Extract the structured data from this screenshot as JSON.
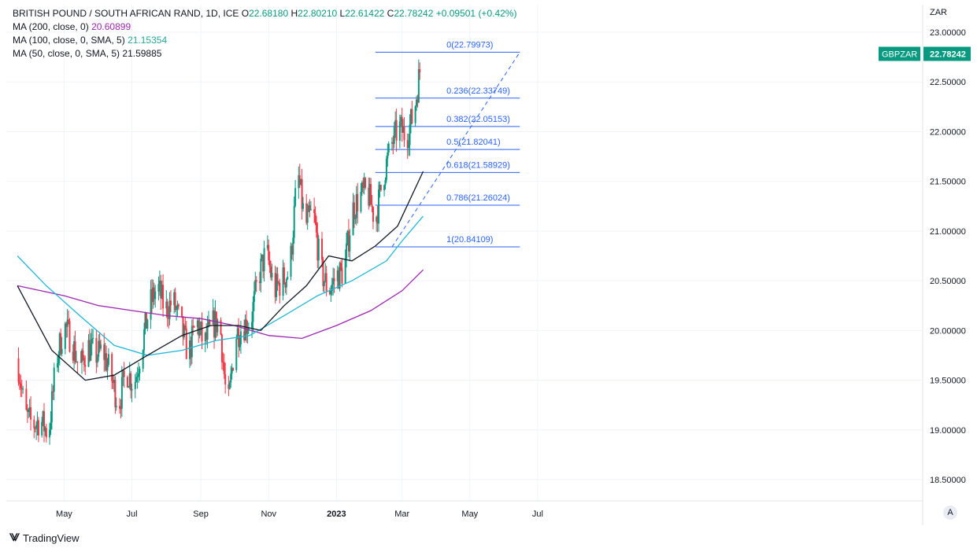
{
  "legend": {
    "symbol": "BRITISH POUND / SOUTH AFRICAN RAND, 1D, ICE",
    "o_label": "O",
    "o": "22.68180",
    "h_label": "H",
    "h": "22.80210",
    "l_label": "L",
    "l": "22.61422",
    "c_label": "C",
    "c": "22.78242",
    "change": "+0.09501 (+0.42%)",
    "ma200_label": "MA (200, close, 0)",
    "ma200_value": "20.60899",
    "ma100_label": "MA (100, close, 0, SMA, 5)",
    "ma100_value": "21.15354",
    "ma50_label": "MA (50, close, 0, SMA, 5)",
    "ma50_value": "21.59885"
  },
  "footer": {
    "brand": "TradingView"
  },
  "controls": {
    "auto_label": "A"
  },
  "colors": {
    "up": "#089981",
    "down": "#f23645",
    "ma200": "#9c27b0",
    "ma100": "#22b7d6",
    "ma50": "#131722",
    "fib": "#2962ff",
    "grid": "#f0f3fa",
    "price_badge": "#089981"
  },
  "chart_data": {
    "type": "candlestick",
    "y_axis_unit": "ZAR",
    "ylim": [
      18.3,
      23.15
    ],
    "y_ticks": [
      "23.00000",
      "22.50000",
      "22.00000",
      "21.50000",
      "21.00000",
      "20.50000",
      "20.00000",
      "19.50000",
      "19.00000",
      "18.50000"
    ],
    "x_ticks": [
      "May",
      "Jul",
      "Sep",
      "Nov",
      "2023",
      "Mar",
      "May",
      "Jul"
    ],
    "last_price_label": "GBPZAR",
    "last_price": "22.78242",
    "fib_levels": [
      {
        "label": "0(22.79973)",
        "value": 22.79973
      },
      {
        "label": "0.236(22.33749)",
        "value": 22.33749
      },
      {
        "label": "0.382(22.05153)",
        "value": 22.05153
      },
      {
        "label": "0.5(21.82041)",
        "value": 21.82041
      },
      {
        "label": "0.618(21.58929)",
        "value": 21.58929
      },
      {
        "label": "0.786(21.26024)",
        "value": 21.26024
      },
      {
        "label": "1(20.84109)",
        "value": 20.84109
      }
    ],
    "price_path": [
      [
        "2022-03-20",
        19.72
      ],
      [
        "2022-03-27",
        19.15
      ],
      [
        "2022-04-03",
        19.05
      ],
      [
        "2022-04-10",
        19.1
      ],
      [
        "2022-04-17",
        18.95
      ],
      [
        "2022-04-24",
        19.7
      ],
      [
        "2022-05-01",
        20.05
      ],
      [
        "2022-05-08",
        19.9
      ],
      [
        "2022-05-15",
        19.6
      ],
      [
        "2022-05-22",
        19.85
      ],
      [
        "2022-05-29",
        19.75
      ],
      [
        "2022-06-05",
        19.8
      ],
      [
        "2022-06-12",
        19.55
      ],
      [
        "2022-06-19",
        19.25
      ],
      [
        "2022-06-26",
        19.6
      ],
      [
        "2022-07-03",
        19.45
      ],
      [
        "2022-07-10",
        19.85
      ],
      [
        "2022-07-17",
        20.25
      ],
      [
        "2022-07-24",
        20.45
      ],
      [
        "2022-07-31",
        20.2
      ],
      [
        "2022-08-07",
        20.3
      ],
      [
        "2022-08-14",
        20.05
      ],
      [
        "2022-08-21",
        19.75
      ],
      [
        "2022-08-28",
        20.1
      ],
      [
        "2022-09-04",
        19.85
      ],
      [
        "2022-09-11",
        20.05
      ],
      [
        "2022-09-18",
        20.1
      ],
      [
        "2022-09-25",
        19.15
      ],
      [
        "2022-10-02",
        19.95
      ],
      [
        "2022-10-09",
        20.05
      ],
      [
        "2022-10-16",
        20.1
      ],
      [
        "2022-10-23",
        20.55
      ],
      [
        "2022-10-30",
        20.8
      ],
      [
        "2022-11-06",
        20.4
      ],
      [
        "2022-11-13",
        20.5
      ],
      [
        "2022-11-20",
        20.6
      ],
      [
        "2022-11-27",
        21.6
      ],
      [
        "2022-12-04",
        21.05
      ],
      [
        "2022-12-11",
        21.2
      ],
      [
        "2022-12-18",
        20.6
      ],
      [
        "2022-12-25",
        20.4
      ],
      [
        "2023-01-01",
        20.55
      ],
      [
        "2023-01-08",
        20.6
      ],
      [
        "2023-01-15",
        21.2
      ],
      [
        "2023-01-22",
        21.35
      ],
      [
        "2023-01-29",
        21.4
      ],
      [
        "2023-02-05",
        21.1
      ],
      [
        "2023-02-12",
        21.55
      ],
      [
        "2023-02-19",
        21.85
      ],
      [
        "2023-02-26",
        22.05
      ],
      [
        "2023-03-05",
        21.95
      ],
      [
        "2023-03-12",
        22.2
      ],
      [
        "2023-03-19",
        22.78
      ]
    ],
    "series": [
      {
        "name": "MA (200, close, 0)",
        "points": [
          [
            "2022-03-20",
            20.45
          ],
          [
            "2022-05-01",
            20.35
          ],
          [
            "2022-06-01",
            20.25
          ],
          [
            "2022-07-01",
            20.2
          ],
          [
            "2022-08-01",
            20.15
          ],
          [
            "2022-09-01",
            20.12
          ],
          [
            "2022-10-01",
            20.05
          ],
          [
            "2022-11-01",
            19.95
          ],
          [
            "2022-12-01",
            19.92
          ],
          [
            "2023-01-01",
            20.05
          ],
          [
            "2023-02-01",
            20.2
          ],
          [
            "2023-03-01",
            20.4
          ],
          [
            "2023-03-20",
            20.61
          ]
        ]
      },
      {
        "name": "MA (100, close, 0, SMA, 5)",
        "points": [
          [
            "2022-03-20",
            20.75
          ],
          [
            "2022-04-15",
            20.45
          ],
          [
            "2022-05-15",
            20.15
          ],
          [
            "2022-06-15",
            19.85
          ],
          [
            "2022-07-15",
            19.75
          ],
          [
            "2022-08-15",
            19.8
          ],
          [
            "2022-09-15",
            19.9
          ],
          [
            "2022-10-15",
            19.95
          ],
          [
            "2022-11-15",
            20.15
          ],
          [
            "2022-12-15",
            20.35
          ],
          [
            "2023-01-15",
            20.5
          ],
          [
            "2023-02-15",
            20.7
          ],
          [
            "2023-03-01",
            20.9
          ],
          [
            "2023-03-20",
            21.15
          ]
        ]
      },
      {
        "name": "MA (50, close, 0, SMA, 5)",
        "points": [
          [
            "2022-03-20",
            20.45
          ],
          [
            "2022-04-20",
            19.8
          ],
          [
            "2022-05-20",
            19.5
          ],
          [
            "2022-06-15",
            19.55
          ],
          [
            "2022-07-15",
            19.75
          ],
          [
            "2022-08-15",
            19.95
          ],
          [
            "2022-09-10",
            20.05
          ],
          [
            "2022-10-05",
            20.05
          ],
          [
            "2022-10-25",
            20.0
          ],
          [
            "2022-11-15",
            20.25
          ],
          [
            "2022-12-05",
            20.45
          ],
          [
            "2022-12-25",
            20.75
          ],
          [
            "2023-01-15",
            20.7
          ],
          [
            "2023-02-05",
            20.85
          ],
          [
            "2023-02-25",
            21.05
          ],
          [
            "2023-03-20",
            21.6
          ]
        ]
      }
    ]
  }
}
